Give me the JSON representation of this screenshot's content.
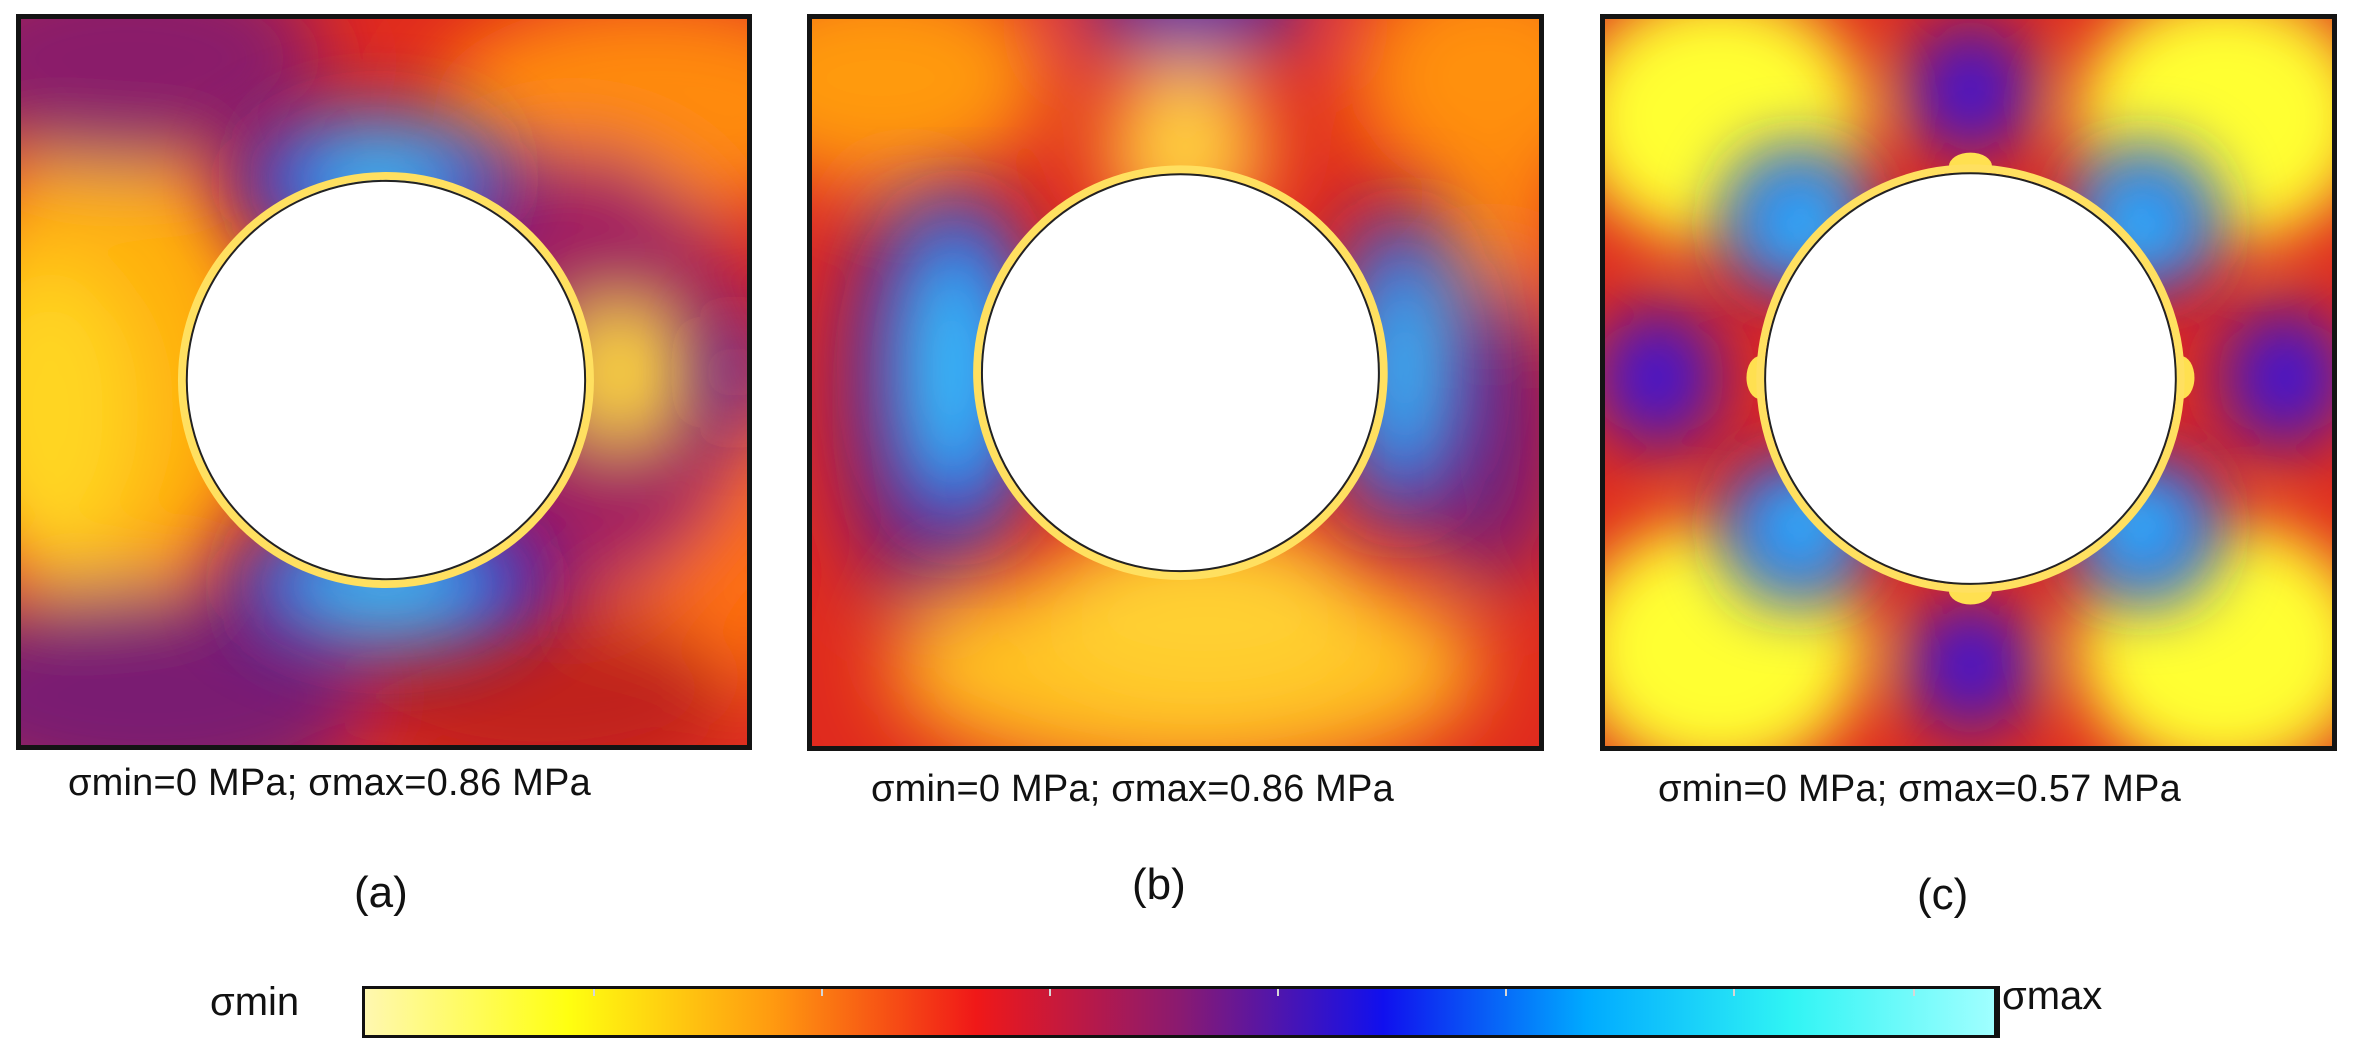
{
  "panels": [
    {
      "id": "a",
      "caption": "σmin=0 MPa; σmax=0.86 MPa",
      "label": "(a)",
      "sigma_min": "0 MPa",
      "sigma_max": "0.86 MPa"
    },
    {
      "id": "b",
      "caption": "σmin=0 MPa; σmax=0.86 MPa",
      "label": "(b)",
      "sigma_min": "0 MPa",
      "sigma_max": "0.86 MPa"
    },
    {
      "id": "c",
      "caption": "σmin=0 MPa; σmax=0.57 MPa",
      "label": "(c)",
      "sigma_min": "0 MPa",
      "sigma_max": "0.57 MPa"
    }
  ],
  "colorbar": {
    "min_label": "σmin",
    "max_label": "σmax",
    "colors": [
      "#fff8b0",
      "#ffff10",
      "#ff9a10",
      "#f01818",
      "#8a1a70",
      "#1010ee",
      "#00aaff",
      "#30f4f4",
      "#a0ffff"
    ]
  }
}
